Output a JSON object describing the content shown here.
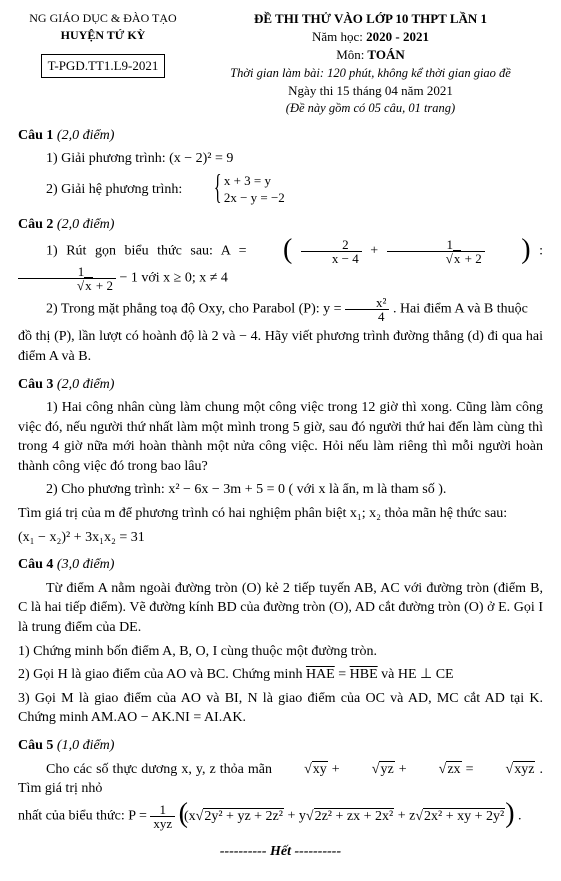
{
  "header": {
    "left_line1": "NG GIÁO DỤC & ĐÀO TẠO",
    "left_line2": "HUYỆN TỨ KỲ",
    "code": "T-PGD.TT1.L9-2021",
    "right_title": "ĐỀ THI THỬ VÀO LỚP 10 THPT LẦN 1",
    "right_year_label": "Năm học:",
    "right_year": "2020 - 2021",
    "right_subject_label": "Môn:",
    "right_subject": "TOÁN",
    "right_time": "Thời gian làm bài: 120 phút, không kể thời gian giao đề",
    "right_date": "Ngày thi 15 tháng 04 năm 2021",
    "right_count": "(Đề này gồm có 05 câu, 01 trang)"
  },
  "q1": {
    "head_b": "Câu 1",
    "head_i": "(2,0 điểm)",
    "p1": "1) Giải phương trình:  (x − 2)² = 9",
    "p2_prefix": "2) Giải hệ phương trình: ",
    "sys_l1": "x + 3 = y",
    "sys_l2": "2x − y = −2"
  },
  "q2": {
    "head_b": "Câu 2",
    "head_i": "(2,0 điểm)",
    "p1_a": "1) Rút gọn biểu thức sau:  A = ",
    "p1_f1n": "2",
    "p1_f1d": "x − 4",
    "p1_plus": " + ",
    "p1_f2n": "1",
    "p1_f2d_sqrt": "x",
    "p1_f2d_tail": " + 2",
    "p1_mid": " : ",
    "p1_f3n": "1",
    "p1_f3d_sqrt": "x",
    "p1_f3d_tail": " + 2",
    "p1_tail": " − 1    với x ≥ 0;  x ≠ 4",
    "p2_a": "2) Trong mặt phẳng toạ độ Oxy, cho Parabol (P):  y = ",
    "p2_fn": "x²",
    "p2_fd": "4",
    "p2_tail": ". Hai điểm A và B thuộc",
    "p2_b": "đồ thị (P), lần lượt có hoành độ là 2 và − 4. Hãy viết phương trình đường thẳng (d) đi qua hai điểm A và B."
  },
  "q3": {
    "head_b": "Câu 3",
    "head_i": "(2,0 điểm)",
    "p1": "1) Hai công nhân cùng làm chung một công việc trong 12 giờ thì xong. Cũng làm công việc đó, nếu người thứ nhất làm một mình trong 5 giờ, sau đó người thứ hai đến làm cùng thì trong 4 giờ nữa mới hoàn thành một nửa công việc. Hỏi nếu làm riêng thì mỗi người hoàn thành công việc đó trong bao lâu?",
    "p2": "2)  Cho phương trình:  x² −  6x −  3m + 5 = 0   ( với x là ẩn,  m là tham số ).",
    "p3": "Tìm giá trị của m để phương trình có hai nghiệm phân biệt  x₁; x₂  thỏa mãn hệ thức sau:",
    "p4": "(x₁ − x₂)² + 3x₁x₂ = 31"
  },
  "q4": {
    "head_b": "Câu 4",
    "head_i": "(3,0 điểm)",
    "p1": "Từ điểm A nằm ngoài đường tròn (O) kẻ 2 tiếp tuyến AB, AC với đường tròn (điểm B, C là hai tiếp điểm). Vẽ đường kính BD của đường tròn (O), AD cắt đường tròn (O) ở E. Gọi I là trung điểm của DE.",
    "p2": "1)  Chứng minh bốn điểm A, B, O, I cùng thuộc một đường tròn.",
    "p3_a": "2)  Gọi H là giao điểm của AO và BC. Chứng minh  ",
    "p3_hae": "HAE",
    "p3_eq": " = ",
    "p3_hbe": "HBE",
    "p3_and": "  và  HE ⊥ CE",
    "p4": "3)  Gọi M là giao điểm của AO và BI, N là giao điểm của OC và AD, MC cắt AD tại K. Chứng minh AM.AO − AK.NI = AI.AK."
  },
  "q5": {
    "head_b": "Câu 5",
    "head_i": "(1,0 điểm)",
    "p1_a": "Cho các số thực dương x, y, z thỏa mãn  ",
    "p1_s1": "xy",
    "p1_s2": "yz",
    "p1_s3": "zx",
    "p1_s4": "xyz",
    "p1_tail": " . Tìm giá trị nhỏ",
    "p2_a": "nhất của biểu thức:  P = ",
    "p2_fn": "1",
    "p2_fd": "xyz",
    "p2_open": "(x",
    "p2_r1": "2y² + yz + 2z²",
    "p2_mid1": " + y",
    "p2_r2": "2z² + zx + 2x²",
    "p2_mid2": " + z",
    "p2_r3": "2x² + xy + 2y²",
    "p2_close": ") ."
  },
  "end": "---------- Hết ----------"
}
